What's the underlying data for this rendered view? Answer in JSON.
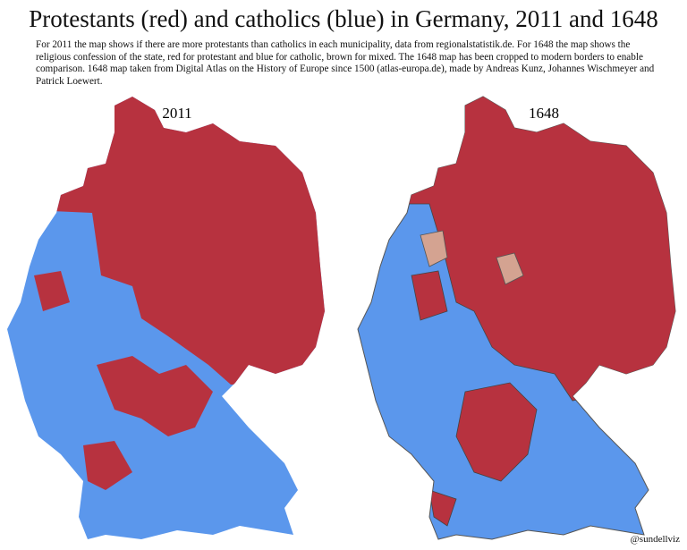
{
  "title": "Protestants (red) and catholics (blue) in Germany, 2011 and 1648",
  "description": "For 2011 the map shows if there are more protestants than catholics in each municipality, data from regionalstatistik.de. For 1648 the map shows the religious confession of the state, red for protestant and blue for catholic, brown for mixed. The 1648 map has been cropped to modern borders to enable comparison. 1648 map taken from Digital Atlas on the History of Europe since 1500 (atlas-europa.de), made by Andreas Kunz, Johannes Wischmeyer and Patrick Loewert.",
  "maps": [
    {
      "label": "2011"
    },
    {
      "label": "1648"
    }
  ],
  "credit": "@sundellviz"
}
